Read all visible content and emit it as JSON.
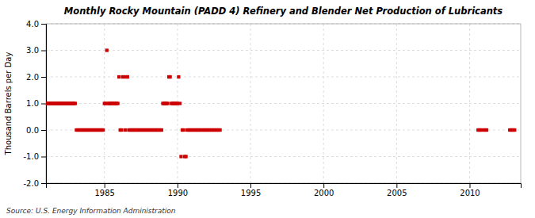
{
  "chart_data": {
    "type": "scatter",
    "title": "Monthly Rocky Mountain (PADD 4) Refinery and Blender Net Production of Lubricants",
    "ylabel": "Thousand Barrels per Day",
    "annotations": [
      "Source: U.S. Energy Information Administration"
    ],
    "color": "#cc0000",
    "marker": "square",
    "grid": true,
    "xlim": [
      1981.0,
      2013.5
    ],
    "ylim": [
      -2.0,
      4.0
    ],
    "xticks": [
      1985,
      1990,
      1995,
      2000,
      2005,
      2010
    ],
    "yticks": [
      {
        "value": -2.0,
        "label": "-2.0"
      },
      {
        "value": -1.0,
        "label": "-1.0"
      },
      {
        "value": 0.0,
        "label": "0.0"
      },
      {
        "value": 1.0,
        "label": "1.0"
      },
      {
        "value": 2.0,
        "label": "2.0"
      },
      {
        "value": 3.0,
        "label": "3.0"
      },
      {
        "value": 4.0,
        "label": "4.0"
      }
    ],
    "x": [
      1981.0,
      1981.083,
      1981.167,
      1981.25,
      1981.333,
      1981.417,
      1981.5,
      1981.583,
      1981.667,
      1981.75,
      1981.833,
      1981.917,
      1982.0,
      1982.083,
      1982.167,
      1982.25,
      1982.333,
      1982.417,
      1982.5,
      1982.583,
      1982.667,
      1982.75,
      1982.833,
      1982.917,
      1983.0,
      1983.083,
      1983.167,
      1983.25,
      1983.333,
      1983.417,
      1983.5,
      1983.583,
      1983.667,
      1983.75,
      1983.833,
      1983.917,
      1984.0,
      1984.083,
      1984.167,
      1984.25,
      1984.333,
      1984.417,
      1984.5,
      1984.583,
      1984.667,
      1984.75,
      1984.833,
      1984.917,
      1985.0,
      1985.083,
      1985.167,
      1985.25,
      1985.333,
      1985.417,
      1985.5,
      1985.583,
      1985.667,
      1985.75,
      1985.833,
      1985.917,
      1986.0,
      1986.083,
      1986.167,
      1986.25,
      1986.333,
      1986.417,
      1986.5,
      1986.583,
      1986.667,
      1986.75,
      1986.833,
      1986.917,
      1987.0,
      1987.083,
      1987.167,
      1987.25,
      1987.333,
      1987.417,
      1987.5,
      1987.583,
      1987.667,
      1987.75,
      1987.833,
      1987.917,
      1988.0,
      1988.083,
      1988.167,
      1988.25,
      1988.333,
      1988.417,
      1988.5,
      1988.583,
      1988.667,
      1988.75,
      1988.833,
      1988.917,
      1989.0,
      1989.083,
      1989.167,
      1989.25,
      1989.333,
      1989.417,
      1989.5,
      1989.583,
      1989.667,
      1989.75,
      1989.833,
      1989.917,
      1990.0,
      1990.083,
      1990.167,
      1990.25,
      1990.333,
      1990.417,
      1990.5,
      1990.583,
      1990.667,
      1990.75,
      1990.833,
      1990.917,
      1991.0,
      1991.083,
      1991.167,
      1991.25,
      1991.333,
      1991.417,
      1991.5,
      1991.583,
      1991.667,
      1991.75,
      1991.833,
      1991.917,
      1992.0,
      1992.083,
      1992.167,
      1992.25,
      1992.333,
      1992.417,
      1992.5,
      1992.583,
      1992.667,
      1992.75,
      1992.833,
      1992.917,
      2010.583,
      2010.667,
      2010.75,
      2010.833,
      2011.0,
      2011.083,
      2011.167,
      2012.75,
      2012.833,
      2012.917,
      2013.0,
      2013.083
    ],
    "values": [
      1.0,
      1.0,
      1.0,
      1.0,
      1.0,
      1.0,
      1.0,
      1.0,
      1.0,
      1.0,
      1.0,
      1.0,
      1.0,
      1.0,
      1.0,
      1.0,
      1.0,
      1.0,
      1.0,
      1.0,
      1.0,
      1.0,
      1.0,
      1.0,
      1.0,
      0.0,
      0.0,
      0.0,
      0.0,
      0.0,
      0.0,
      0.0,
      0.0,
      0.0,
      0.0,
      0.0,
      0.0,
      0.0,
      0.0,
      0.0,
      0.0,
      0.0,
      0.0,
      0.0,
      0.0,
      0.0,
      0.0,
      0.0,
      1.0,
      1.0,
      3.0,
      1.0,
      1.0,
      1.0,
      1.0,
      1.0,
      1.0,
      1.0,
      1.0,
      1.0,
      2.0,
      0.0,
      0.0,
      2.0,
      2.0,
      0.0,
      2.0,
      2.0,
      0.0,
      0.0,
      0.0,
      0.0,
      0.0,
      0.0,
      0.0,
      0.0,
      0.0,
      0.0,
      0.0,
      0.0,
      0.0,
      0.0,
      0.0,
      0.0,
      0.0,
      0.0,
      0.0,
      0.0,
      0.0,
      0.0,
      0.0,
      0.0,
      0.0,
      0.0,
      0.0,
      0.0,
      1.0,
      1.0,
      1.0,
      1.0,
      1.0,
      2.0,
      2.0,
      1.0,
      1.0,
      1.0,
      1.0,
      1.0,
      1.0,
      2.0,
      1.0,
      -1.0,
      0.0,
      0.0,
      -1.0,
      -1.0,
      0.0,
      0.0,
      0.0,
      0.0,
      0.0,
      0.0,
      0.0,
      0.0,
      0.0,
      0.0,
      0.0,
      0.0,
      0.0,
      0.0,
      0.0,
      0.0,
      0.0,
      0.0,
      0.0,
      0.0,
      0.0,
      0.0,
      0.0,
      0.0,
      0.0,
      0.0,
      0.0,
      0.0,
      0.0,
      0.0,
      0.0,
      0.0,
      0.0,
      0.0,
      0.0,
      0.0,
      0.0,
      0.0,
      0.0,
      0.0
    ]
  }
}
